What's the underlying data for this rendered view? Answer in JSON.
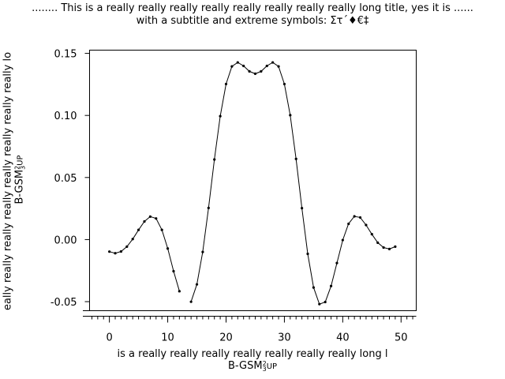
{
  "chart_data": {
    "type": "line",
    "title": "........ This is a really really really really really really really really long title, yes it is ......",
    "subtitle": "with a subtitle and extreme symbols: Στ΄♦€‡",
    "xlabel": "is a really really really really really really really long l",
    "ylabel": "eally really really really really really really really lo",
    "unit_label": {
      "base": "B-GSM",
      "sup": "2",
      "sub": "3",
      "suffix": "UP"
    },
    "xlim": [
      -3.4,
      52.6
    ],
    "ylim": [
      -0.0573,
      0.1526
    ],
    "xticks": [
      0,
      10,
      20,
      30,
      40,
      50
    ],
    "xtick_labels": [
      "0",
      "10",
      "20",
      "30",
      "40",
      "50"
    ],
    "yticks": [
      -0.05,
      0,
      0.05,
      0.1,
      0.15
    ],
    "ytick_labels": [
      "-0.05",
      "0.00",
      "0.05",
      "0.10",
      "0.15"
    ],
    "grid": false,
    "line_color": "#000000",
    "marker": "dot",
    "series": [
      {
        "x": [
          0,
          1,
          2,
          3,
          4,
          5,
          6,
          7,
          8,
          9,
          10,
          11,
          12,
          13,
          14,
          15,
          16,
          17,
          18,
          19,
          20,
          21,
          22,
          23,
          24,
          25,
          26,
          27,
          28,
          29,
          30,
          31,
          32,
          33,
          34,
          35,
          36,
          37,
          38,
          39,
          40,
          41,
          42,
          43,
          44,
          45,
          46,
          47,
          48,
          49
        ],
        "y": [
          -0.0097,
          -0.011,
          -0.0096,
          -0.0057,
          0.0004,
          0.0078,
          0.0146,
          0.0185,
          0.017,
          0.0078,
          -0.0072,
          -0.0255,
          -0.0416,
          null,
          -0.0501,
          -0.0361,
          -0.01,
          0.0255,
          0.0645,
          0.0994,
          0.1253,
          0.1395,
          0.1427,
          0.1399,
          0.1355,
          0.1336,
          0.1355,
          0.1399,
          0.1427,
          0.1395,
          0.1253,
          0.1002,
          0.065,
          0.0253,
          -0.0115,
          -0.0386,
          -0.052,
          -0.0503,
          -0.0374,
          -0.0189,
          -0.0004,
          0.0127,
          0.0187,
          0.0178,
          0.0117,
          0.0043,
          -0.0025,
          -0.0064,
          -0.0076,
          -0.0057
        ]
      }
    ]
  }
}
